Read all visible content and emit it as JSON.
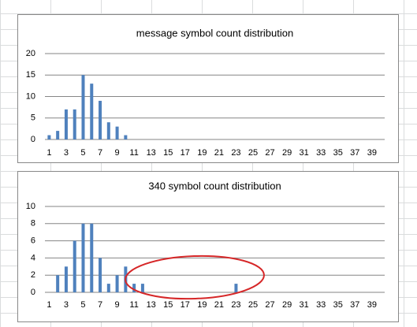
{
  "chart_data": [
    {
      "type": "bar",
      "title": "message symbol count distribution",
      "categories": [
        1,
        null,
        3,
        null,
        5,
        null,
        7,
        null,
        9,
        null,
        11,
        null,
        13,
        null,
        15,
        null,
        17,
        null,
        19,
        null,
        21,
        null,
        23,
        null,
        25,
        null,
        27,
        null,
        29,
        null,
        31,
        null,
        33,
        null,
        35,
        null,
        37,
        null,
        39,
        null
      ],
      "values": [
        1,
        2,
        7,
        7,
        15,
        13,
        9,
        4,
        3,
        1,
        0,
        0,
        0,
        0,
        0,
        0,
        0,
        0,
        0,
        0,
        0,
        0,
        0,
        0,
        0,
        0,
        0,
        0,
        0,
        0,
        0,
        0,
        0,
        0,
        0,
        0,
        0,
        0,
        0,
        0
      ],
      "color": "#4f81bd",
      "ylim": [
        0,
        20
      ],
      "yticks": [
        0,
        5,
        10,
        15,
        20
      ],
      "grid": true
    },
    {
      "type": "bar",
      "title": "340 symbol count distribution",
      "categories": [
        1,
        null,
        3,
        null,
        5,
        null,
        7,
        null,
        9,
        null,
        11,
        null,
        13,
        null,
        15,
        null,
        17,
        null,
        19,
        null,
        21,
        null,
        23,
        null,
        25,
        null,
        27,
        null,
        29,
        null,
        31,
        null,
        33,
        null,
        35,
        null,
        37,
        null,
        39,
        null
      ],
      "values": [
        0,
        2,
        3,
        6,
        8,
        8,
        4,
        1,
        2,
        3,
        1,
        1,
        0,
        0,
        0,
        0,
        0,
        0,
        0,
        0,
        0,
        0,
        1,
        0,
        0,
        0,
        0,
        0,
        0,
        0,
        0,
        0,
        0,
        0,
        0,
        0,
        0,
        0,
        0,
        0
      ],
      "color": "#4f81bd",
      "ylim": [
        0,
        10
      ],
      "yticks": [
        0,
        2,
        4,
        6,
        8,
        10
      ],
      "grid": true
    }
  ]
}
